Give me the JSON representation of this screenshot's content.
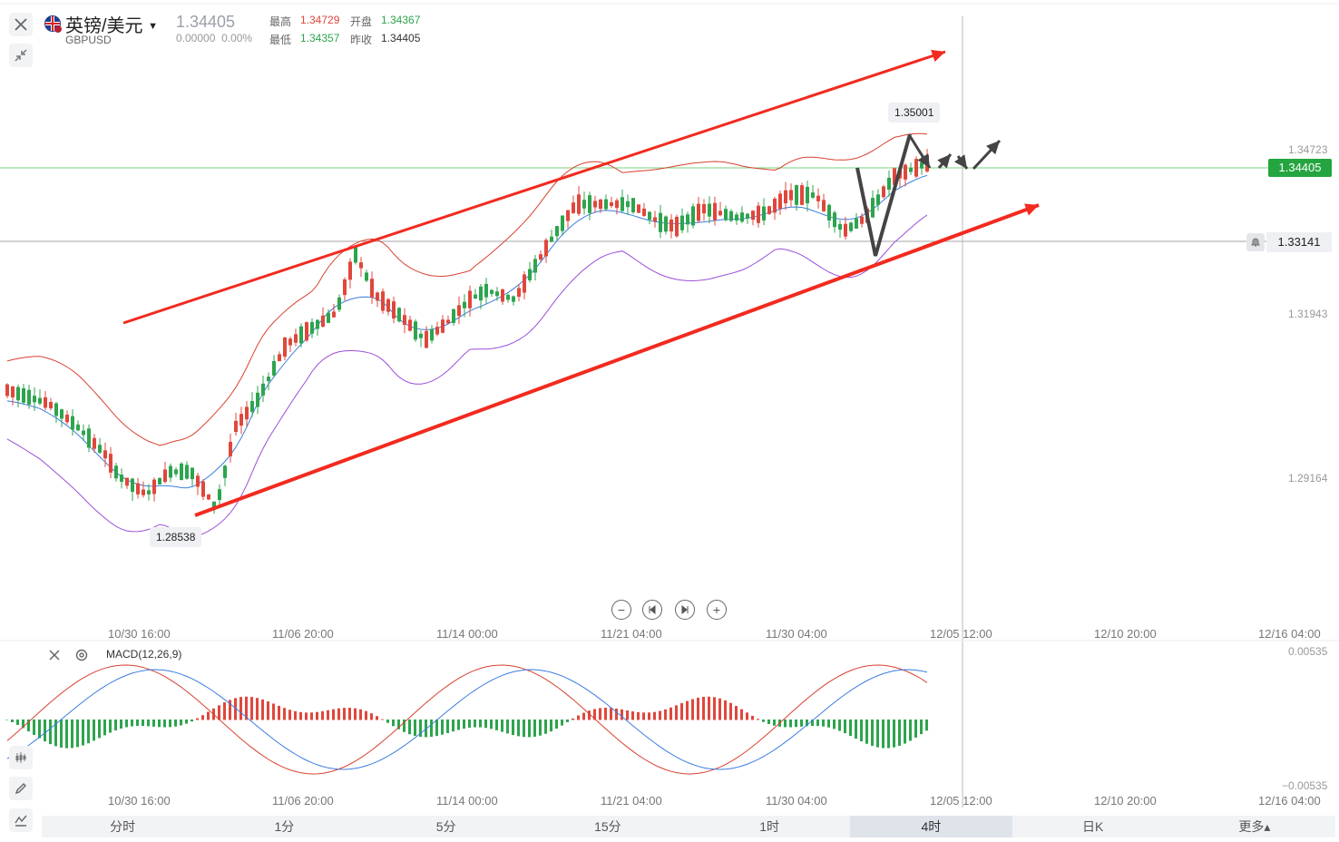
{
  "header": {
    "title": "英镑/美元",
    "symbol": "GBPUSD",
    "price": "1.34405",
    "change": "0.00000",
    "change_pct": "0.00%",
    "high_label": "最高",
    "high": "1.34729",
    "open_label": "开盘",
    "open": "1.34367",
    "low_label": "最低",
    "low": "1.34357",
    "prev_close_label": "昨收",
    "prev_close": "1.34405"
  },
  "price_axis": {
    "ticks": [
      "1.34723",
      "1.31943",
      "1.29164"
    ],
    "current_price": "1.34405",
    "alert_price": "1.33141"
  },
  "chart_tags": {
    "high_marker": "1.35001",
    "low_marker": "1.28538"
  },
  "time_axis": [
    "10/30 16:00",
    "11/06 20:00",
    "11/14 00:00",
    "11/21 04:00",
    "11/30 04:00",
    "12/05 12:00",
    "12/10 20:00",
    "12/16 04:00"
  ],
  "indicator": {
    "name": "MACD(12,26,9)",
    "axis_top": "0.00535",
    "axis_bottom": "−0.00535"
  },
  "timeframes": [
    "分时",
    "1分",
    "5分",
    "15分",
    "1时",
    "4时",
    "日K",
    "更多▴"
  ],
  "active_timeframe": "4时",
  "colors": {
    "up": "#e0473c",
    "down": "#2da44e",
    "current_tag": "#25a540",
    "trend_arrow": "#f22a1f",
    "mid_band": "#3b7de0",
    "lower_band": "#9b4fd8",
    "upper_band": "#d8412f"
  },
  "chart_data": {
    "type": "candlestick",
    "y_ticks": [
      1.34723,
      1.31943,
      1.29164
    ],
    "annotations": [
      1.35001,
      1.28538
    ],
    "last_price": 1.34405,
    "alert_line": 1.33141
  }
}
